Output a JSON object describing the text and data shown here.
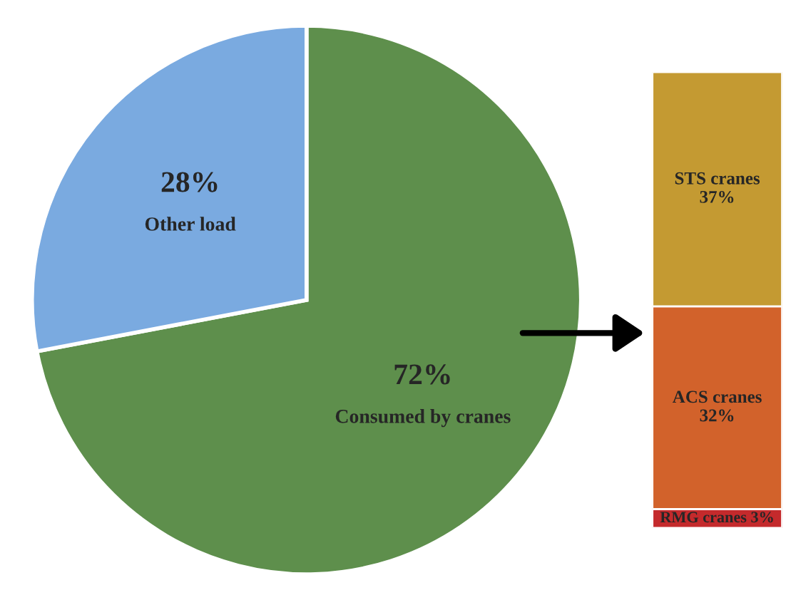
{
  "chart_data": [
    {
      "type": "pie",
      "categories": [
        "Consumed by cranes",
        "Other load"
      ],
      "values": [
        72,
        28
      ],
      "colors": [
        "#5e8f4c",
        "#7aaae0"
      ],
      "value_labels": [
        "72%",
        "28%"
      ]
    },
    {
      "type": "bar",
      "stacked": true,
      "categories": [
        null
      ],
      "ylim": [
        0,
        72
      ],
      "tick_labels": false,
      "series": [
        {
          "name": "RMG cranes",
          "color": "#c42a2c",
          "values": [
            3
          ],
          "value_labels": [
            "3%"
          ]
        },
        {
          "name": "ACS cranes",
          "color": "#d2622b",
          "values": [
            32
          ],
          "value_labels": [
            "32%"
          ]
        },
        {
          "name": "STS cranes",
          "color": "#c49a32",
          "values": [
            37
          ],
          "value_labels": [
            "37%"
          ]
        }
      ]
    }
  ]
}
